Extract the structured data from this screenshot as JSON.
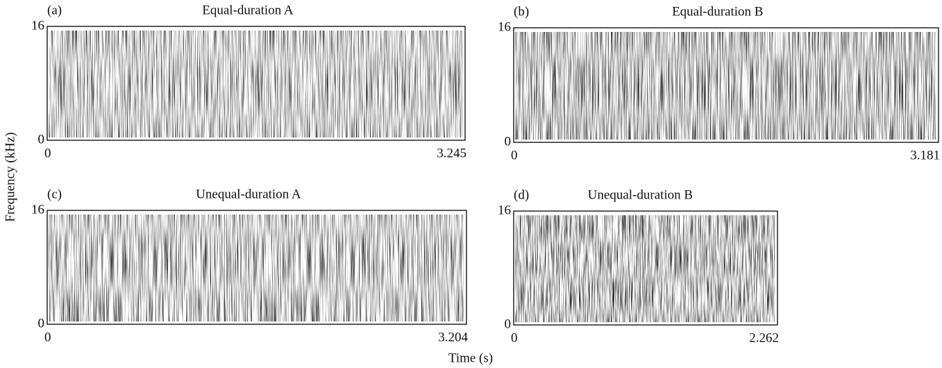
{
  "x_label": "Time (s)",
  "y_label": "Frequency (kHz)",
  "chart_data": [
    {
      "type": "spectrogram",
      "panel": "(a)",
      "title": "Equal-duration A",
      "xlim": [
        0,
        3.245
      ],
      "ylim": [
        0,
        16
      ],
      "xticks": [
        0,
        3.245
      ],
      "yticks": [
        0,
        16
      ]
    },
    {
      "type": "spectrogram",
      "panel": "(b)",
      "title": "Equal-duration B",
      "xlim": [
        0,
        3.181
      ],
      "ylim": [
        0,
        16
      ],
      "xticks": [
        0,
        3.181
      ],
      "yticks": [
        0,
        16
      ]
    },
    {
      "type": "spectrogram",
      "panel": "(c)",
      "title": "Unequal-duration A",
      "xlim": [
        0,
        3.204
      ],
      "ylim": [
        0,
        16
      ],
      "xticks": [
        0,
        3.204
      ],
      "yticks": [
        0,
        16
      ]
    },
    {
      "type": "spectrogram",
      "panel": "(d)",
      "title": "Unequal-duration B",
      "xlim": [
        0,
        2.262
      ],
      "ylim": [
        0,
        16
      ],
      "xticks": [
        0,
        2.262
      ],
      "yticks": [
        0,
        16
      ]
    }
  ]
}
